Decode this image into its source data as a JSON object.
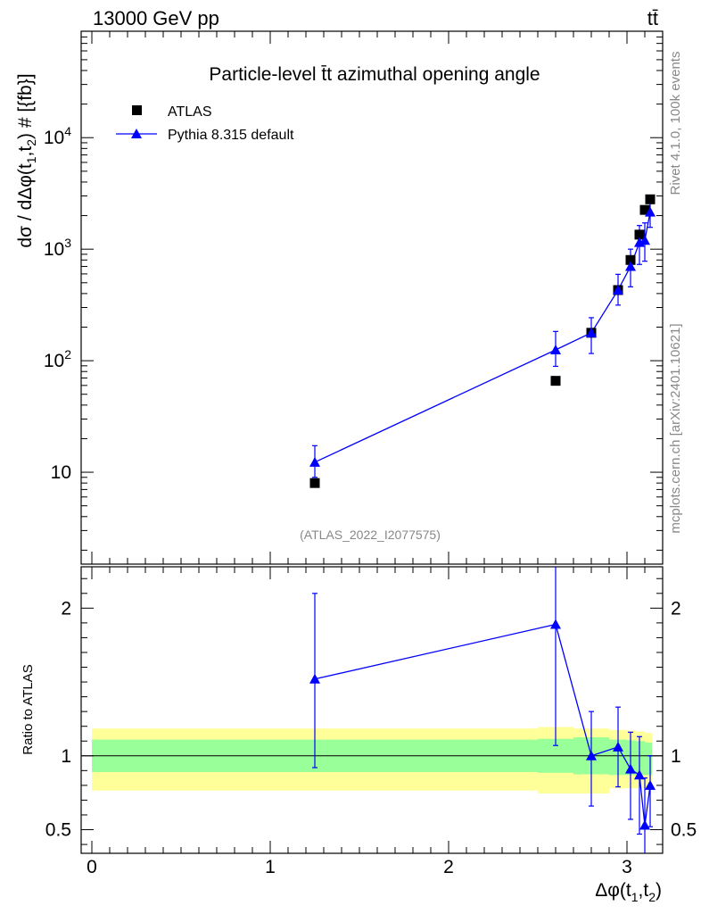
{
  "header": {
    "energy": "13000 GeV pp",
    "process": "tt̄"
  },
  "side": {
    "rivet": "Rivet 4.1.0,  100k events",
    "source": "mcplots.cern.ch [arXiv:2401.10621]"
  },
  "colors": {
    "data": "#000000",
    "mc": "#0000ff",
    "band_inner": "#99ff99",
    "band_outer": "#ffff99"
  },
  "chart_data": [
    {
      "type": "scatter",
      "panel": "main",
      "title": "Particle-level t̄t azimuthal opening angle",
      "analysis": "(ATLAS_2022_I2077575)",
      "ylabel": "dσ / dΔφ(t1,t2) # [{fb}]",
      "yscale": "log",
      "ylim": [
        1.5,
        90000
      ],
      "xlim": [
        -0.06,
        3.2
      ],
      "yticks": [
        {
          "value": 10,
          "label": "10"
        },
        {
          "value": 100,
          "label": "10^2"
        },
        {
          "value": 1000,
          "label": "10^3"
        },
        {
          "value": 10000,
          "label": "10^4"
        }
      ],
      "legend": [
        "ATLAS",
        "Pythia 8.315 default"
      ],
      "series": [
        {
          "name": "ATLAS",
          "marker": "square",
          "x": [
            1.25,
            2.6,
            2.8,
            2.95,
            3.02,
            3.07,
            3.1,
            3.13
          ],
          "values": [
            8.0,
            66,
            178,
            430,
            800,
            1350,
            2250,
            2800
          ]
        },
        {
          "name": "Pythia 8.315 default",
          "marker": "triangle",
          "x": [
            1.25,
            2.6,
            2.8,
            2.95,
            3.02,
            3.07,
            3.1,
            3.13
          ],
          "values": [
            12.3,
            125,
            178,
            430,
            700,
            1150,
            1200,
            2150
          ],
          "err_low": [
            3.3,
            36,
            62,
            115,
            240,
            420,
            420,
            580
          ],
          "err_high": [
            5.0,
            58,
            65,
            165,
            300,
            480,
            520,
            520
          ]
        }
      ]
    },
    {
      "type": "line",
      "panel": "ratio",
      "ylabel": "Ratio to ATLAS",
      "xlabel": "Δφ(t1,t2)",
      "ylim": [
        0.34,
        2.28
      ],
      "xlim": [
        -0.06,
        3.2
      ],
      "xticks": [
        0,
        1,
        2,
        3
      ],
      "yticks": [
        {
          "value": 0.5,
          "label": "0.5"
        },
        {
          "value": 1,
          "label": "1"
        },
        {
          "value": 2,
          "label": "2"
        }
      ],
      "bands": {
        "edges": [
          0,
          2.5,
          2.7,
          2.9,
          3.0,
          3.05,
          3.1,
          3.14
        ],
        "inner_low": [
          0.89,
          0.885,
          0.875,
          0.87,
          0.87,
          0.87,
          0.87
        ],
        "inner_high": [
          1.11,
          1.115,
          1.125,
          1.11,
          1.105,
          1.1,
          1.09
        ],
        "outer_low": [
          0.765,
          0.745,
          0.745,
          0.78,
          0.78,
          0.78,
          0.78
        ],
        "outer_high": [
          1.185,
          1.195,
          1.185,
          1.175,
          1.17,
          1.165,
          1.155
        ]
      },
      "series": [
        {
          "name": "Pythia 8.315 default",
          "x": [
            1.25,
            2.6,
            2.8,
            2.95,
            3.02,
            3.07,
            3.1,
            3.13
          ],
          "values": [
            1.52,
            1.89,
            1.0,
            1.06,
            0.91,
            0.87,
            0.53,
            0.8
          ],
          "err_low": [
            0.6,
            0.82,
            0.34,
            0.27,
            0.34,
            0.4,
            0.22,
            0.28
          ],
          "err_high": [
            0.58,
            0.52,
            0.3,
            0.27,
            0.25,
            0.26,
            0.32,
            0.2
          ]
        }
      ]
    }
  ]
}
